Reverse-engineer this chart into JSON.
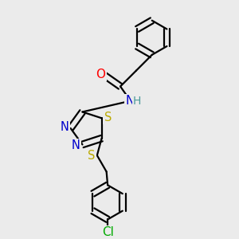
{
  "background_color": "#ebebeb",
  "bond_color": "#000000",
  "atom_colors": {
    "O": "#ff0000",
    "N": "#0000cc",
    "S": "#bbaa00",
    "Cl": "#00aa00",
    "C": "#000000",
    "H": "#4a9a9a"
  },
  "line_width": 1.6,
  "dbo": 0.013,
  "font_size": 10.5,
  "fig_size": [
    3.0,
    3.0
  ],
  "dpi": 100
}
